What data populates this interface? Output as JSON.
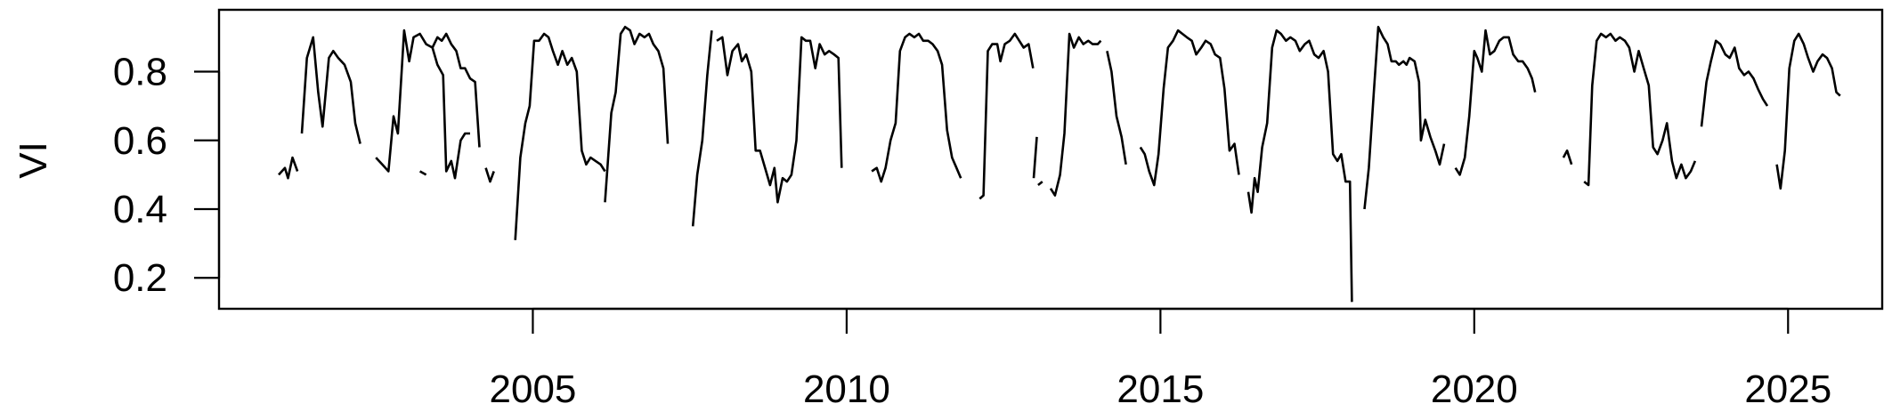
{
  "chart_data": {
    "type": "line",
    "ylabel": "VI",
    "xlabel": "",
    "title": "",
    "xlim": [
      2000.0,
      2026.5
    ],
    "ylim": [
      0.11,
      0.98
    ],
    "x_ticks": [
      2005,
      2010,
      2015,
      2020,
      2025
    ],
    "x_tick_labels": [
      "2005",
      "2010",
      "2015",
      "2020",
      "2025"
    ],
    "y_ticks": [
      0.2,
      0.4,
      0.6,
      0.8
    ],
    "y_tick_labels": [
      "0.2",
      "0.4",
      "0.6",
      "0.8"
    ],
    "grid": false,
    "legend": "none",
    "line_color": "#000000",
    "segments": [
      [
        [
          2000.95,
          0.5
        ],
        [
          2001.05,
          0.52
        ],
        [
          2001.1,
          0.49
        ],
        [
          2001.17,
          0.55
        ],
        [
          2001.25,
          0.51
        ]
      ],
      [
        [
          2001.32,
          0.62
        ],
        [
          2001.4,
          0.84
        ],
        [
          2001.5,
          0.9
        ],
        [
          2001.58,
          0.74
        ],
        [
          2001.65,
          0.64
        ],
        [
          2001.75,
          0.84
        ],
        [
          2001.82,
          0.86
        ],
        [
          2001.9,
          0.84
        ],
        [
          2002.0,
          0.82
        ],
        [
          2002.1,
          0.77
        ],
        [
          2002.17,
          0.65
        ],
        [
          2002.25,
          0.59
        ]
      ],
      [
        [
          2002.5,
          0.55
        ],
        [
          2002.6,
          0.53
        ],
        [
          2002.7,
          0.51
        ],
        [
          2002.78,
          0.67
        ],
        [
          2002.85,
          0.62
        ],
        [
          2002.95,
          0.92
        ],
        [
          2003.03,
          0.83
        ],
        [
          2003.1,
          0.9
        ],
        [
          2003.2,
          0.91
        ],
        [
          2003.3,
          0.88
        ],
        [
          2003.4,
          0.87
        ],
        [
          2003.48,
          0.82
        ],
        [
          2003.57,
          0.79
        ],
        [
          2003.62,
          0.51
        ],
        [
          2003.7,
          0.54
        ],
        [
          2003.76,
          0.49
        ],
        [
          2003.85,
          0.6
        ],
        [
          2003.92,
          0.62
        ],
        [
          2004.0,
          0.62
        ]
      ],
      [
        [
          2003.2,
          0.51
        ],
        [
          2003.3,
          0.5
        ]
      ],
      [
        [
          2003.4,
          0.87
        ],
        [
          2003.48,
          0.9
        ],
        [
          2003.55,
          0.89
        ],
        [
          2003.62,
          0.91
        ],
        [
          2003.7,
          0.88
        ],
        [
          2003.78,
          0.86
        ],
        [
          2003.85,
          0.81
        ],
        [
          2003.92,
          0.81
        ],
        [
          2004.0,
          0.78
        ],
        [
          2004.08,
          0.77
        ],
        [
          2004.15,
          0.58
        ]
      ],
      [
        [
          2004.25,
          0.52
        ],
        [
          2004.32,
          0.48
        ],
        [
          2004.38,
          0.51
        ]
      ],
      [
        [
          2004.72,
          0.31
        ],
        [
          2004.8,
          0.55
        ],
        [
          2004.88,
          0.65
        ],
        [
          2004.95,
          0.7
        ],
        [
          2005.02,
          0.89
        ],
        [
          2005.1,
          0.89
        ],
        [
          2005.18,
          0.91
        ],
        [
          2005.25,
          0.9
        ],
        [
          2005.32,
          0.86
        ],
        [
          2005.4,
          0.82
        ],
        [
          2005.47,
          0.86
        ],
        [
          2005.55,
          0.82
        ],
        [
          2005.62,
          0.84
        ],
        [
          2005.7,
          0.8
        ],
        [
          2005.78,
          0.57
        ],
        [
          2005.85,
          0.53
        ],
        [
          2005.92,
          0.55
        ],
        [
          2006.0,
          0.54
        ],
        [
          2006.08,
          0.53
        ],
        [
          2006.15,
          0.51
        ]
      ],
      [
        [
          2006.15,
          0.42
        ],
        [
          2006.25,
          0.68
        ],
        [
          2006.32,
          0.74
        ],
        [
          2006.4,
          0.91
        ],
        [
          2006.47,
          0.93
        ],
        [
          2006.55,
          0.92
        ],
        [
          2006.62,
          0.88
        ],
        [
          2006.7,
          0.91
        ],
        [
          2006.78,
          0.9
        ],
        [
          2006.85,
          0.91
        ],
        [
          2006.92,
          0.88
        ],
        [
          2007.0,
          0.86
        ],
        [
          2007.08,
          0.81
        ],
        [
          2007.15,
          0.59
        ]
      ],
      [
        [
          2007.55,
          0.35
        ],
        [
          2007.62,
          0.5
        ],
        [
          2007.7,
          0.6
        ],
        [
          2007.78,
          0.79
        ],
        [
          2007.85,
          0.92
        ]
      ],
      [
        [
          2007.93,
          0.89
        ],
        [
          2008.02,
          0.9
        ],
        [
          2008.1,
          0.79
        ],
        [
          2008.18,
          0.86
        ],
        [
          2008.27,
          0.88
        ],
        [
          2008.33,
          0.83
        ],
        [
          2008.4,
          0.85
        ],
        [
          2008.48,
          0.8
        ],
        [
          2008.55,
          0.57
        ],
        [
          2008.62,
          0.57
        ],
        [
          2008.7,
          0.52
        ],
        [
          2008.78,
          0.47
        ],
        [
          2008.85,
          0.52
        ],
        [
          2008.9,
          0.42
        ],
        [
          2008.98,
          0.49
        ],
        [
          2009.05,
          0.48
        ],
        [
          2009.12,
          0.5
        ],
        [
          2009.2,
          0.6
        ],
        [
          2009.28,
          0.9
        ],
        [
          2009.35,
          0.89
        ],
        [
          2009.42,
          0.89
        ],
        [
          2009.5,
          0.81
        ],
        [
          2009.57,
          0.88
        ],
        [
          2009.65,
          0.85
        ],
        [
          2009.72,
          0.86
        ],
        [
          2009.8,
          0.85
        ],
        [
          2009.87,
          0.84
        ],
        [
          2009.92,
          0.52
        ]
      ],
      [
        [
          2010.4,
          0.51
        ],
        [
          2010.48,
          0.52
        ],
        [
          2010.55,
          0.48
        ],
        [
          2010.62,
          0.52
        ],
        [
          2010.7,
          0.6
        ],
        [
          2010.78,
          0.65
        ],
        [
          2010.85,
          0.86
        ],
        [
          2010.93,
          0.9
        ],
        [
          2011.0,
          0.91
        ],
        [
          2011.08,
          0.9
        ],
        [
          2011.15,
          0.91
        ],
        [
          2011.22,
          0.89
        ],
        [
          2011.3,
          0.89
        ],
        [
          2011.37,
          0.88
        ],
        [
          2011.45,
          0.86
        ],
        [
          2011.52,
          0.82
        ],
        [
          2011.6,
          0.63
        ],
        [
          2011.68,
          0.55
        ],
        [
          2011.75,
          0.52
        ],
        [
          2011.82,
          0.49
        ]
      ],
      [
        [
          2012.12,
          0.43
        ],
        [
          2012.18,
          0.44
        ],
        [
          2012.25,
          0.86
        ],
        [
          2012.32,
          0.88
        ],
        [
          2012.4,
          0.88
        ],
        [
          2012.45,
          0.83
        ],
        [
          2012.52,
          0.88
        ],
        [
          2012.6,
          0.89
        ],
        [
          2012.68,
          0.91
        ],
        [
          2012.75,
          0.89
        ],
        [
          2012.82,
          0.87
        ],
        [
          2012.9,
          0.88
        ],
        [
          2012.97,
          0.81
        ]
      ],
      [
        [
          2012.98,
          0.49
        ],
        [
          2013.03,
          0.61
        ]
      ],
      [
        [
          2013.05,
          0.47
        ],
        [
          2013.12,
          0.48
        ]
      ],
      [
        [
          2013.25,
          0.46
        ],
        [
          2013.32,
          0.44
        ],
        [
          2013.4,
          0.5
        ],
        [
          2013.47,
          0.62
        ],
        [
          2013.55,
          0.91
        ],
        [
          2013.62,
          0.87
        ],
        [
          2013.7,
          0.9
        ],
        [
          2013.77,
          0.88
        ],
        [
          2013.85,
          0.89
        ],
        [
          2013.92,
          0.88
        ],
        [
          2014.0,
          0.88
        ],
        [
          2014.05,
          0.89
        ]
      ],
      [
        [
          2014.15,
          0.86
        ],
        [
          2014.22,
          0.8
        ],
        [
          2014.3,
          0.67
        ],
        [
          2014.38,
          0.61
        ],
        [
          2014.45,
          0.53
        ]
      ],
      [
        [
          2014.68,
          0.58
        ],
        [
          2014.75,
          0.56
        ],
        [
          2014.82,
          0.51
        ],
        [
          2014.9,
          0.47
        ],
        [
          2014.97,
          0.56
        ],
        [
          2015.05,
          0.75
        ],
        [
          2015.12,
          0.87
        ],
        [
          2015.2,
          0.89
        ],
        [
          2015.28,
          0.92
        ],
        [
          2015.35,
          0.91
        ],
        [
          2015.42,
          0.9
        ],
        [
          2015.5,
          0.89
        ],
        [
          2015.57,
          0.85
        ],
        [
          2015.65,
          0.87
        ],
        [
          2015.72,
          0.89
        ],
        [
          2015.8,
          0.88
        ],
        [
          2015.87,
          0.85
        ],
        [
          2015.95,
          0.84
        ],
        [
          2016.02,
          0.75
        ],
        [
          2016.1,
          0.57
        ],
        [
          2016.18,
          0.59
        ],
        [
          2016.25,
          0.5
        ]
      ],
      [
        [
          2016.4,
          0.45
        ],
        [
          2016.45,
          0.39
        ],
        [
          2016.5,
          0.49
        ],
        [
          2016.55,
          0.45
        ],
        [
          2016.62,
          0.58
        ],
        [
          2016.7,
          0.65
        ],
        [
          2016.78,
          0.87
        ],
        [
          2016.85,
          0.92
        ],
        [
          2016.92,
          0.91
        ],
        [
          2017.0,
          0.89
        ],
        [
          2017.07,
          0.9
        ],
        [
          2017.15,
          0.89
        ],
        [
          2017.22,
          0.86
        ],
        [
          2017.3,
          0.88
        ],
        [
          2017.37,
          0.89
        ],
        [
          2017.45,
          0.85
        ],
        [
          2017.52,
          0.84
        ],
        [
          2017.6,
          0.86
        ],
        [
          2017.67,
          0.8
        ],
        [
          2017.75,
          0.56
        ],
        [
          2017.82,
          0.54
        ],
        [
          2017.88,
          0.56
        ],
        [
          2017.95,
          0.48
        ],
        [
          2018.02,
          0.48
        ],
        [
          2018.05,
          0.13
        ]
      ],
      [
        [
          2018.25,
          0.4
        ],
        [
          2018.32,
          0.52
        ],
        [
          2018.4,
          0.74
        ],
        [
          2018.47,
          0.93
        ],
        [
          2018.55,
          0.9
        ],
        [
          2018.62,
          0.88
        ],
        [
          2018.68,
          0.83
        ],
        [
          2018.75,
          0.83
        ],
        [
          2018.8,
          0.82
        ],
        [
          2018.87,
          0.83
        ],
        [
          2018.92,
          0.82
        ],
        [
          2018.97,
          0.84
        ],
        [
          2019.05,
          0.83
        ],
        [
          2019.12,
          0.77
        ],
        [
          2019.15,
          0.6
        ],
        [
          2019.22,
          0.66
        ],
        [
          2019.3,
          0.61
        ],
        [
          2019.38,
          0.57
        ],
        [
          2019.45,
          0.53
        ],
        [
          2019.52,
          0.59
        ]
      ],
      [
        [
          2019.7,
          0.52
        ],
        [
          2019.77,
          0.5
        ],
        [
          2019.85,
          0.55
        ],
        [
          2019.92,
          0.67
        ],
        [
          2020.0,
          0.86
        ],
        [
          2020.05,
          0.84
        ],
        [
          2020.12,
          0.8
        ],
        [
          2020.18,
          0.92
        ],
        [
          2020.25,
          0.85
        ],
        [
          2020.32,
          0.86
        ],
        [
          2020.4,
          0.89
        ],
        [
          2020.47,
          0.9
        ],
        [
          2020.55,
          0.9
        ],
        [
          2020.62,
          0.85
        ],
        [
          2020.7,
          0.83
        ],
        [
          2020.77,
          0.83
        ],
        [
          2020.85,
          0.81
        ],
        [
          2020.92,
          0.78
        ],
        [
          2020.97,
          0.74
        ]
      ],
      [
        [
          2021.42,
          0.55
        ],
        [
          2021.48,
          0.57
        ],
        [
          2021.55,
          0.53
        ]
      ],
      [
        [
          2021.75,
          0.48
        ],
        [
          2021.82,
          0.47
        ],
        [
          2021.88,
          0.76
        ],
        [
          2021.95,
          0.89
        ],
        [
          2022.02,
          0.91
        ],
        [
          2022.1,
          0.9
        ],
        [
          2022.17,
          0.91
        ],
        [
          2022.25,
          0.89
        ],
        [
          2022.32,
          0.9
        ],
        [
          2022.4,
          0.89
        ],
        [
          2022.47,
          0.87
        ],
        [
          2022.55,
          0.8
        ],
        [
          2022.62,
          0.86
        ],
        [
          2022.7,
          0.81
        ],
        [
          2022.78,
          0.76
        ],
        [
          2022.85,
          0.58
        ],
        [
          2022.92,
          0.56
        ],
        [
          2023.0,
          0.6
        ],
        [
          2023.07,
          0.65
        ],
        [
          2023.15,
          0.54
        ],
        [
          2023.22,
          0.49
        ],
        [
          2023.3,
          0.53
        ],
        [
          2023.37,
          0.49
        ],
        [
          2023.45,
          0.51
        ],
        [
          2023.52,
          0.54
        ]
      ],
      [
        [
          2023.62,
          0.64
        ],
        [
          2023.7,
          0.77
        ],
        [
          2023.77,
          0.83
        ],
        [
          2023.85,
          0.89
        ],
        [
          2023.92,
          0.88
        ],
        [
          2024.0,
          0.85
        ],
        [
          2024.07,
          0.84
        ],
        [
          2024.15,
          0.87
        ],
        [
          2024.22,
          0.81
        ],
        [
          2024.3,
          0.79
        ],
        [
          2024.37,
          0.8
        ],
        [
          2024.45,
          0.78
        ],
        [
          2024.52,
          0.75
        ],
        [
          2024.6,
          0.72
        ],
        [
          2024.67,
          0.7
        ]
      ],
      [
        [
          2024.82,
          0.53
        ],
        [
          2024.88,
          0.46
        ],
        [
          2024.95,
          0.57
        ],
        [
          2025.02,
          0.81
        ],
        [
          2025.1,
          0.89
        ],
        [
          2025.17,
          0.91
        ],
        [
          2025.25,
          0.88
        ],
        [
          2025.32,
          0.84
        ],
        [
          2025.4,
          0.8
        ],
        [
          2025.47,
          0.83
        ],
        [
          2025.55,
          0.85
        ],
        [
          2025.62,
          0.84
        ],
        [
          2025.7,
          0.81
        ],
        [
          2025.77,
          0.74
        ],
        [
          2025.83,
          0.73
        ]
      ]
    ]
  }
}
